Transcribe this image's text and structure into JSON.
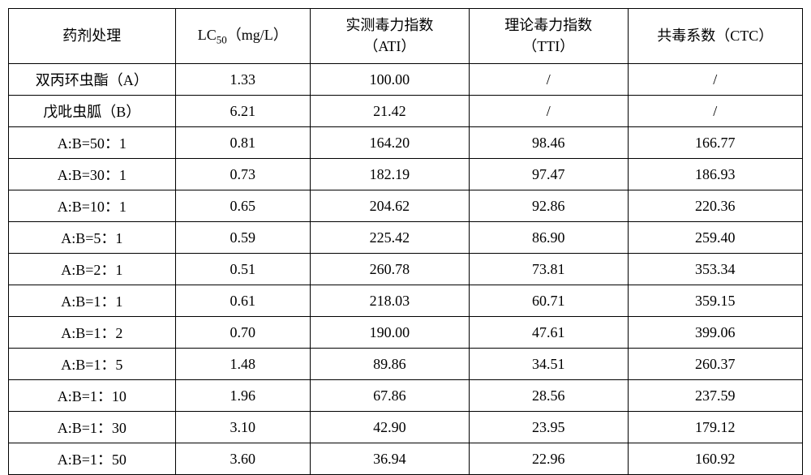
{
  "table": {
    "type": "table",
    "background_color": "#ffffff",
    "border_color": "#000000",
    "border_width": 1.5,
    "font_family": "SimSun",
    "header_fontsize": 18,
    "cell_fontsize": 18,
    "column_widths": [
      "21%",
      "17%",
      "20%",
      "20%",
      "22%"
    ],
    "columns": [
      {
        "label": "药剂处理",
        "align": "center"
      },
      {
        "label_prefix": "LC",
        "label_sub": "50",
        "label_suffix": "（mg/L）",
        "align": "center"
      },
      {
        "label_line1": "实测毒力指数",
        "label_line2": "（ATI）",
        "align": "center"
      },
      {
        "label_line1": "理论毒力指数",
        "label_line2": "（TTI）",
        "align": "center"
      },
      {
        "label": "共毒系数（CTC）",
        "align": "center"
      }
    ],
    "rows": [
      {
        "treatment": "双丙环虫酯（A）",
        "lc50": "1.33",
        "ati": "100.00",
        "tti": "/",
        "ctc": "/"
      },
      {
        "treatment": "戊吡虫胍（B）",
        "lc50": "6.21",
        "ati": "21.42",
        "tti": "/",
        "ctc": "/"
      },
      {
        "treatment": "A:B=50：1",
        "lc50": "0.81",
        "ati": "164.20",
        "tti": "98.46",
        "ctc": "166.77"
      },
      {
        "treatment": "A:B=30：1",
        "lc50": "0.73",
        "ati": "182.19",
        "tti": "97.47",
        "ctc": "186.93"
      },
      {
        "treatment": "A:B=10：1",
        "lc50": "0.65",
        "ati": "204.62",
        "tti": "92.86",
        "ctc": "220.36"
      },
      {
        "treatment": "A:B=5：1",
        "lc50": "0.59",
        "ati": "225.42",
        "tti": "86.90",
        "ctc": "259.40"
      },
      {
        "treatment": "A:B=2：1",
        "lc50": "0.51",
        "ati": "260.78",
        "tti": "73.81",
        "ctc": "353.34"
      },
      {
        "treatment": "A:B=1：1",
        "lc50": "0.61",
        "ati": "218.03",
        "tti": "60.71",
        "ctc": "359.15"
      },
      {
        "treatment": "A:B=1：2",
        "lc50": "0.70",
        "ati": "190.00",
        "tti": "47.61",
        "ctc": "399.06"
      },
      {
        "treatment": "A:B=1：5",
        "lc50": "1.48",
        "ati": "89.86",
        "tti": "34.51",
        "ctc": "260.37"
      },
      {
        "treatment": "A:B=1：10",
        "lc50": "1.96",
        "ati": "67.86",
        "tti": "28.56",
        "ctc": "237.59"
      },
      {
        "treatment": "A:B=1：30",
        "lc50": "3.10",
        "ati": "42.90",
        "tti": "23.95",
        "ctc": "179.12"
      },
      {
        "treatment": "A:B=1：50",
        "lc50": "3.60",
        "ati": "36.94",
        "tti": "22.96",
        "ctc": "160.92"
      }
    ]
  }
}
